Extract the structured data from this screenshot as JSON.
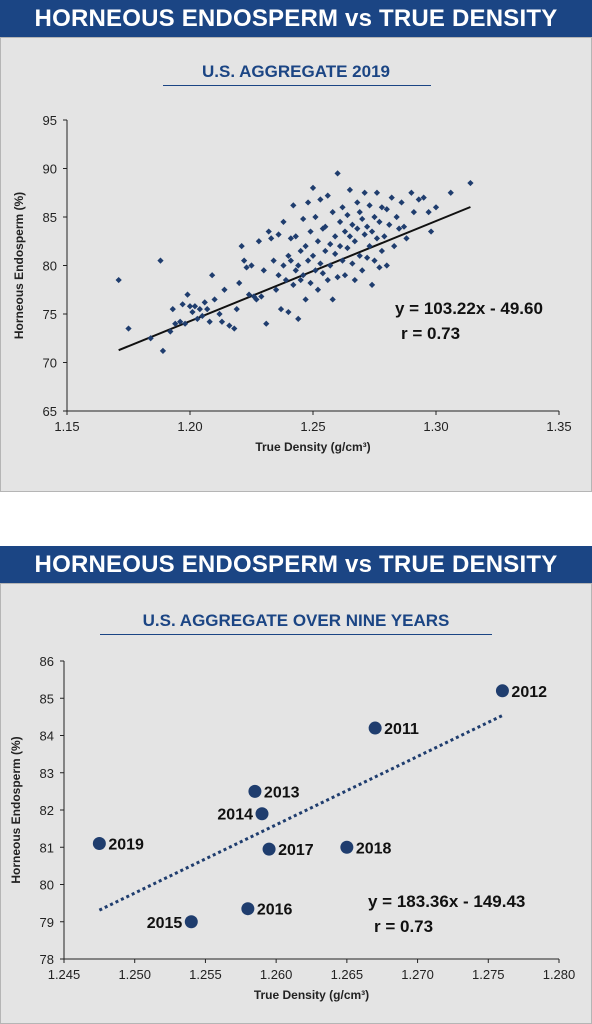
{
  "chart_data": [
    {
      "type": "scatter",
      "title": "HORNEOUS ENDOSPERM vs TRUE DENSITY",
      "subtitle": "U.S. AGGREGATE 2019",
      "xlabel": "True Density (g/cm³)",
      "ylabel": "Horneous Endosperm (%)",
      "xlim": [
        1.15,
        1.35
      ],
      "ylim": [
        65,
        95
      ],
      "xticks": [
        "1.15",
        "1.20",
        "1.25",
        "1.30",
        "1.35"
      ],
      "yticks": [
        "65",
        "70",
        "75",
        "80",
        "85",
        "90",
        "95"
      ],
      "grid": false,
      "marker_color": "#1f3d6e",
      "trendline": {
        "style": "solid",
        "slope": 103.22,
        "intercept": -49.6,
        "x_range": [
          1.171,
          1.314
        ]
      },
      "equation": "y = 103.22x - 49.60",
      "r_label": "r = 0.73",
      "points": [
        [
          1.171,
          78.5
        ],
        [
          1.175,
          73.5
        ],
        [
          1.184,
          72.5
        ],
        [
          1.188,
          80.5
        ],
        [
          1.189,
          71.2
        ],
        [
          1.192,
          73.2
        ],
        [
          1.193,
          75.5
        ],
        [
          1.194,
          74.0
        ],
        [
          1.196,
          74.2
        ],
        [
          1.197,
          76.0
        ],
        [
          1.198,
          74.0
        ],
        [
          1.199,
          77.0
        ],
        [
          1.2,
          75.8
        ],
        [
          1.201,
          75.2
        ],
        [
          1.202,
          75.8
        ],
        [
          1.203,
          74.5
        ],
        [
          1.204,
          75.5
        ],
        [
          1.205,
          74.8
        ],
        [
          1.206,
          76.2
        ],
        [
          1.207,
          75.5
        ],
        [
          1.208,
          74.2
        ],
        [
          1.209,
          79.0
        ],
        [
          1.21,
          76.5
        ],
        [
          1.212,
          75.0
        ],
        [
          1.213,
          74.2
        ],
        [
          1.214,
          77.5
        ],
        [
          1.216,
          73.8
        ],
        [
          1.218,
          73.5
        ],
        [
          1.219,
          75.5
        ],
        [
          1.22,
          78.2
        ],
        [
          1.221,
          82.0
        ],
        [
          1.222,
          80.5
        ],
        [
          1.223,
          79.8
        ],
        [
          1.224,
          77.0
        ],
        [
          1.225,
          80.0
        ],
        [
          1.226,
          76.8
        ],
        [
          1.227,
          76.5
        ],
        [
          1.228,
          82.5
        ],
        [
          1.229,
          76.8
        ],
        [
          1.23,
          79.5
        ],
        [
          1.231,
          74.0
        ],
        [
          1.232,
          83.5
        ],
        [
          1.233,
          82.8
        ],
        [
          1.234,
          80.5
        ],
        [
          1.235,
          77.5
        ],
        [
          1.236,
          79.0
        ],
        [
          1.236,
          83.2
        ],
        [
          1.237,
          75.5
        ],
        [
          1.238,
          80.0
        ],
        [
          1.238,
          84.5
        ],
        [
          1.239,
          78.5
        ],
        [
          1.24,
          81.0
        ],
        [
          1.24,
          75.2
        ],
        [
          1.241,
          80.5
        ],
        [
          1.241,
          82.8
        ],
        [
          1.242,
          78.0
        ],
        [
          1.242,
          86.2
        ],
        [
          1.243,
          79.5
        ],
        [
          1.243,
          83.0
        ],
        [
          1.244,
          80.0
        ],
        [
          1.244,
          74.5
        ],
        [
          1.245,
          81.5
        ],
        [
          1.245,
          78.5
        ],
        [
          1.246,
          84.8
        ],
        [
          1.246,
          79.0
        ],
        [
          1.247,
          82.0
        ],
        [
          1.247,
          76.5
        ],
        [
          1.248,
          80.5
        ],
        [
          1.248,
          86.5
        ],
        [
          1.249,
          78.2
        ],
        [
          1.249,
          83.5
        ],
        [
          1.25,
          81.0
        ],
        [
          1.25,
          88.0
        ],
        [
          1.251,
          79.5
        ],
        [
          1.251,
          85.0
        ],
        [
          1.252,
          82.5
        ],
        [
          1.252,
          77.5
        ],
        [
          1.253,
          80.2
        ],
        [
          1.253,
          86.8
        ],
        [
          1.254,
          83.8
        ],
        [
          1.254,
          79.2
        ],
        [
          1.255,
          81.5
        ],
        [
          1.255,
          84.0
        ],
        [
          1.256,
          78.5
        ],
        [
          1.256,
          87.2
        ],
        [
          1.257,
          82.2
        ],
        [
          1.257,
          80.0
        ],
        [
          1.258,
          85.5
        ],
        [
          1.258,
          76.5
        ],
        [
          1.259,
          83.0
        ],
        [
          1.259,
          81.2
        ],
        [
          1.26,
          89.5
        ],
        [
          1.26,
          78.8
        ],
        [
          1.261,
          84.5
        ],
        [
          1.261,
          82.0
        ],
        [
          1.262,
          80.5
        ],
        [
          1.262,
          86.0
        ],
        [
          1.263,
          83.5
        ],
        [
          1.263,
          79.0
        ],
        [
          1.264,
          85.2
        ],
        [
          1.264,
          81.8
        ],
        [
          1.265,
          83.0
        ],
        [
          1.265,
          87.8
        ],
        [
          1.266,
          80.2
        ],
        [
          1.266,
          84.2
        ],
        [
          1.267,
          82.5
        ],
        [
          1.267,
          78.5
        ],
        [
          1.268,
          86.5
        ],
        [
          1.268,
          83.8
        ],
        [
          1.269,
          81.0
        ],
        [
          1.269,
          85.5
        ],
        [
          1.27,
          84.8
        ],
        [
          1.27,
          79.5
        ],
        [
          1.271,
          83.2
        ],
        [
          1.271,
          87.5
        ],
        [
          1.272,
          80.8
        ],
        [
          1.272,
          84.0
        ],
        [
          1.273,
          82.0
        ],
        [
          1.273,
          86.2
        ],
        [
          1.274,
          78.0
        ],
        [
          1.274,
          83.5
        ],
        [
          1.275,
          85.0
        ],
        [
          1.275,
          80.5
        ],
        [
          1.276,
          87.5
        ],
        [
          1.276,
          82.8
        ],
        [
          1.277,
          84.5
        ],
        [
          1.277,
          79.8
        ],
        [
          1.278,
          86.0
        ],
        [
          1.278,
          81.5
        ],
        [
          1.279,
          83.0
        ],
        [
          1.28,
          85.8
        ],
        [
          1.28,
          80.0
        ],
        [
          1.281,
          84.2
        ],
        [
          1.282,
          87.0
        ],
        [
          1.283,
          82.0
        ],
        [
          1.284,
          85.0
        ],
        [
          1.285,
          83.8
        ],
        [
          1.286,
          86.5
        ],
        [
          1.287,
          84.0
        ],
        [
          1.288,
          82.8
        ],
        [
          1.29,
          87.5
        ],
        [
          1.291,
          85.5
        ],
        [
          1.293,
          86.8
        ],
        [
          1.295,
          87.0
        ],
        [
          1.297,
          85.5
        ],
        [
          1.298,
          83.5
        ],
        [
          1.3,
          86.0
        ],
        [
          1.306,
          87.5
        ],
        [
          1.314,
          88.5
        ]
      ]
    },
    {
      "type": "scatter",
      "title": "HORNEOUS ENDOSPERM vs TRUE DENSITY",
      "subtitle": "U.S. AGGREGATE OVER NINE YEARS",
      "xlabel": "True Density (g/cm³)",
      "ylabel": "Horneous Endosperm (%)",
      "xlim": [
        1.245,
        1.28
      ],
      "ylim": [
        78,
        86
      ],
      "xticks": [
        "1.245",
        "1.250",
        "1.255",
        "1.260",
        "1.265",
        "1.270",
        "1.275",
        "1.280"
      ],
      "yticks": [
        "78",
        "79",
        "80",
        "81",
        "82",
        "83",
        "84",
        "85",
        "86"
      ],
      "grid": false,
      "marker_color": "#1f3d6e",
      "trendline": {
        "style": "dotted",
        "slope": 183.36,
        "intercept": -149.43,
        "x_range": [
          1.2475,
          1.276
        ]
      },
      "equation": "y = 183.36x - 149.43",
      "r_label": "r = 0.73",
      "points": [
        {
          "label": "2012",
          "x": 1.276,
          "y": 85.2
        },
        {
          "label": "2011",
          "x": 1.267,
          "y": 84.2
        },
        {
          "label": "2013",
          "x": 1.2585,
          "y": 82.5
        },
        {
          "label": "2014",
          "x": 1.259,
          "y": 81.9
        },
        {
          "label": "2019",
          "x": 1.2475,
          "y": 81.1
        },
        {
          "label": "2017",
          "x": 1.2595,
          "y": 80.95
        },
        {
          "label": "2018",
          "x": 1.265,
          "y": 81.0
        },
        {
          "label": "2016",
          "x": 1.258,
          "y": 79.35
        },
        {
          "label": "2015",
          "x": 1.254,
          "y": 79.0
        }
      ]
    }
  ]
}
